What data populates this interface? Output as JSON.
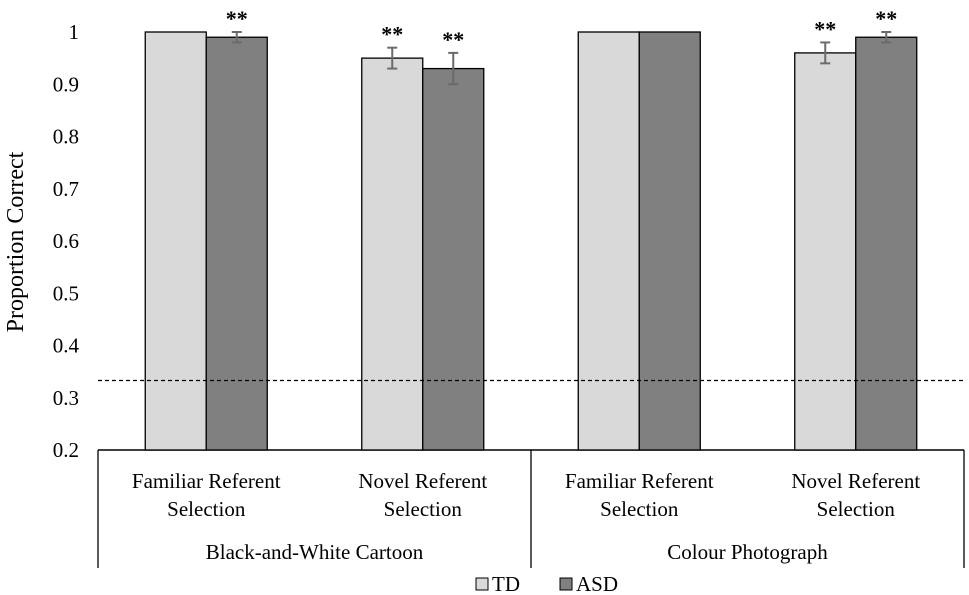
{
  "chart_data": {
    "type": "bar",
    "ylabel": "Proportion Correct",
    "ylim": [
      0.2,
      1.0
    ],
    "yticks": [
      "0.2",
      "0.3",
      "0.4",
      "0.5",
      "0.6",
      "0.7",
      "0.8",
      "0.9",
      "1"
    ],
    "chance_level": 0.333,
    "categories": [
      {
        "group": "Black-and-White Cartoon",
        "line1": "Familiar Referent",
        "line2": "Selection"
      },
      {
        "group": "Black-and-White Cartoon",
        "line1": "Novel Referent",
        "line2": "Selection"
      },
      {
        "group": "Colour Photograph",
        "line1": "Familiar Referent",
        "line2": "Selection"
      },
      {
        "group": "Colour Photograph",
        "line1": "Novel Referent",
        "line2": "Selection"
      }
    ],
    "groups": [
      "Black-and-White Cartoon",
      "Colour Photograph"
    ],
    "series": [
      {
        "name": "TD",
        "color": "#d9d9d9",
        "values": [
          1.0,
          0.95,
          1.0,
          0.96
        ],
        "errors": [
          0,
          0.02,
          0,
          0.02
        ],
        "significance": [
          "",
          "**",
          "",
          "**"
        ]
      },
      {
        "name": "ASD",
        "color": "#808080",
        "values": [
          0.99,
          0.93,
          1.0,
          0.99
        ],
        "errors": [
          0.01,
          0.03,
          0,
          0.01
        ],
        "significance": [
          "**",
          "**",
          "",
          "**"
        ]
      }
    ],
    "legend_position": "bottom",
    "grid": false
  }
}
